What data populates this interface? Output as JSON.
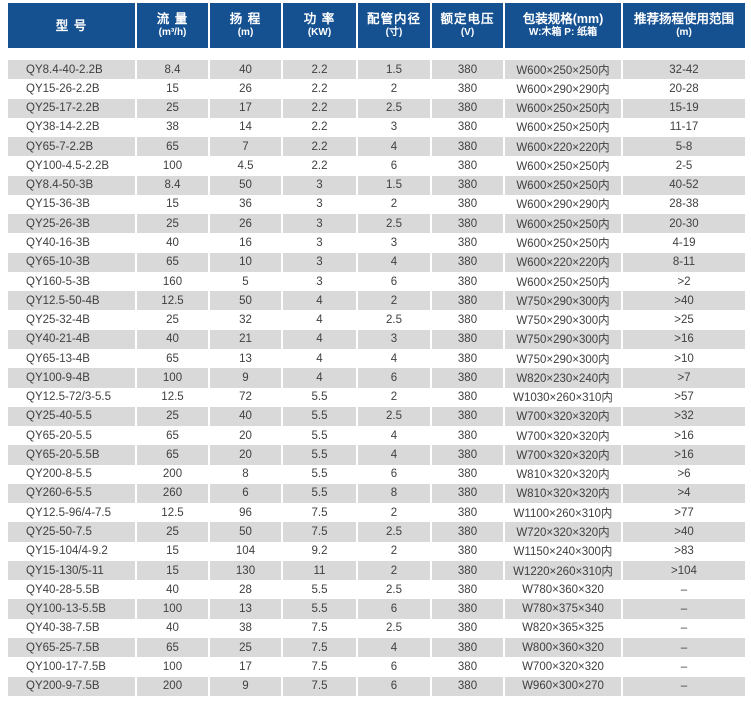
{
  "colors": {
    "header_bg": "#155191",
    "header_text": "#ffffff",
    "stripe": "#d9d9d9",
    "body_text": "#404040"
  },
  "table": {
    "columns": [
      {
        "key": "model",
        "label": "型 号",
        "sub": ""
      },
      {
        "key": "flow",
        "label": "流 量",
        "sub": "(m³/h)"
      },
      {
        "key": "head",
        "label": "扬 程",
        "sub": "(m)"
      },
      {
        "key": "power",
        "label": "功 率",
        "sub": "(KW)"
      },
      {
        "key": "pipe",
        "label": "配管内径",
        "sub": "(寸)"
      },
      {
        "key": "voltage",
        "label": "额定电压",
        "sub": "(V)"
      },
      {
        "key": "packaging",
        "label": "包装规格(mm)",
        "sub": "W:木箱 P: 纸箱"
      },
      {
        "key": "range",
        "label": "推荐扬程使用范围",
        "sub": "(m)"
      }
    ],
    "rows": [
      [
        "QY8.4-40-2.2B",
        "8.4",
        "40",
        "2.2",
        "1.5",
        "380",
        "W600×250×250内",
        "32-42"
      ],
      [
        "QY15-26-2.2B",
        "15",
        "26",
        "2.2",
        "2",
        "380",
        "W600×290×290内",
        "20-28"
      ],
      [
        "QY25-17-2.2B",
        "25",
        "17",
        "2.2",
        "2.5",
        "380",
        "W600×250×250内",
        "15-19"
      ],
      [
        "QY38-14-2.2B",
        "38",
        "14",
        "2.2",
        "3",
        "380",
        "W600×250×250内",
        "11-17"
      ],
      [
        "QY65-7-2.2B",
        "65",
        "7",
        "2.2",
        "4",
        "380",
        "W600×220×220内",
        "5-8"
      ],
      [
        "QY100-4.5-2.2B",
        "100",
        "4.5",
        "2.2",
        "6",
        "380",
        "W600×250×250内",
        "2-5"
      ],
      [
        "QY8.4-50-3B",
        "8.4",
        "50",
        "3",
        "1.5",
        "380",
        "W600×250×250内",
        "40-52"
      ],
      [
        "QY15-36-3B",
        "15",
        "36",
        "3",
        "2",
        "380",
        "W600×290×290内",
        "28-38"
      ],
      [
        "QY25-26-3B",
        "25",
        "26",
        "3",
        "2.5",
        "380",
        "W600×250×250内",
        "20-30"
      ],
      [
        "QY40-16-3B",
        "40",
        "16",
        "3",
        "3",
        "380",
        "W600×250×250内",
        "4-19"
      ],
      [
        "QY65-10-3B",
        "65",
        "10",
        "3",
        "4",
        "380",
        "W600×220×220内",
        "8-11"
      ],
      [
        "QY160-5-3B",
        "160",
        "5",
        "3",
        "6",
        "380",
        "W600×250×250内",
        ">2"
      ],
      [
        "QY12.5-50-4B",
        "12.5",
        "50",
        "4",
        "2",
        "380",
        "W750×290×300内",
        ">40"
      ],
      [
        "QY25-32-4B",
        "25",
        "32",
        "4",
        "2.5",
        "380",
        "W750×290×300内",
        ">25"
      ],
      [
        "QY40-21-4B",
        "40",
        "21",
        "4",
        "3",
        "380",
        "W750×290×300内",
        ">16"
      ],
      [
        "QY65-13-4B",
        "65",
        "13",
        "4",
        "4",
        "380",
        "W750×290×300内",
        ">10"
      ],
      [
        "QY100-9-4B",
        "100",
        "9",
        "4",
        "6",
        "380",
        "W820×230×240内",
        ">7"
      ],
      [
        "QY12.5-72/3-5.5",
        "12.5",
        "72",
        "5.5",
        "2",
        "380",
        "W1030×260×310内",
        ">57"
      ],
      [
        "QY25-40-5.5",
        "25",
        "40",
        "5.5",
        "2.5",
        "380",
        "W700×320×320内",
        ">32"
      ],
      [
        "QY65-20-5.5",
        "65",
        "20",
        "5.5",
        "4",
        "380",
        "W700×320×320内",
        ">16"
      ],
      [
        "QY65-20-5.5B",
        "65",
        "20",
        "5.5",
        "4",
        "380",
        "W700×320×320内",
        ">16"
      ],
      [
        "QY200-8-5.5",
        "200",
        "8",
        "5.5",
        "6",
        "380",
        "W810×320×320内",
        ">6"
      ],
      [
        "QY260-6-5.5",
        "260",
        "6",
        "5.5",
        "8",
        "380",
        "W810×320×320内",
        ">4"
      ],
      [
        "QY12.5-96/4-7.5",
        "12.5",
        "96",
        "7.5",
        "2",
        "380",
        "W1100×260×310内",
        ">77"
      ],
      [
        "QY25-50-7.5",
        "25",
        "50",
        "7.5",
        "2.5",
        "380",
        "W720×320×320内",
        ">40"
      ],
      [
        "QY15-104/4-9.2",
        "15",
        "104",
        "9.2",
        "2",
        "380",
        "W1150×240×300内",
        ">83"
      ],
      [
        "QY15-130/5-11",
        "15",
        "130",
        "11",
        "2",
        "380",
        "W1220×260×310内",
        ">104"
      ],
      [
        "QY40-28-5.5B",
        "40",
        "28",
        "5.5",
        "2.5",
        "380",
        "W780×360×320",
        "–"
      ],
      [
        "QY100-13-5.5B",
        "100",
        "13",
        "5.5",
        "6",
        "380",
        "W780×375×340",
        "–"
      ],
      [
        "QY40-38-7.5B",
        "40",
        "38",
        "7.5",
        "2.5",
        "380",
        "W820×365×325",
        "–"
      ],
      [
        "QY65-25-7.5B",
        "65",
        "25",
        "7.5",
        "4",
        "380",
        "W800×360×320",
        "–"
      ],
      [
        "QY100-17-7.5B",
        "100",
        "17",
        "7.5",
        "6",
        "380",
        "W700×320×320",
        "–"
      ],
      [
        "QY200-9-7.5B",
        "200",
        "9",
        "7.5",
        "6",
        "380",
        "W960×300×270",
        "–"
      ]
    ]
  }
}
